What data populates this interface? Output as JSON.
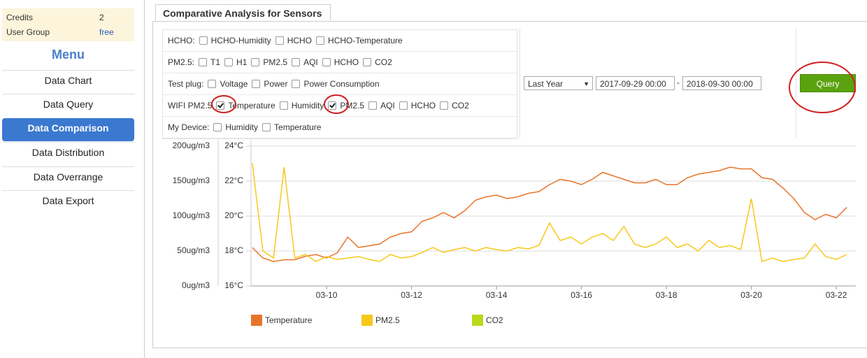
{
  "sidebar": {
    "credits_label": "Credits",
    "credits_value": 2,
    "group_label": "User Group",
    "group_value": "free",
    "menu_title": "Menu",
    "menu": [
      {
        "text": "Data Chart",
        "active": false
      },
      {
        "text": "Data Query",
        "active": false
      },
      {
        "text": "Data Comparison",
        "active": true
      },
      {
        "text": "Data Distribution",
        "active": false
      },
      {
        "text": "Data Overrange",
        "active": false
      },
      {
        "text": "Data Export",
        "active": false
      }
    ]
  },
  "tab": "Comparative Analysis for Sensors",
  "filters": [
    {
      "label": "HCHO:",
      "options": [
        {
          "text": "HCHO-Humidity",
          "checked": false
        },
        {
          "text": "HCHO",
          "checked": false
        },
        {
          "text": "HCHO-Temperature",
          "checked": false
        }
      ]
    },
    {
      "label": "PM2.5:",
      "options": [
        {
          "text": "T1",
          "checked": false
        },
        {
          "text": "H1",
          "checked": false
        },
        {
          "text": "PM2.5",
          "checked": false
        },
        {
          "text": "AQI",
          "checked": false
        },
        {
          "text": "HCHO",
          "checked": false
        },
        {
          "text": "CO2",
          "checked": false
        }
      ]
    },
    {
      "label": "Test plug:",
      "options": [
        {
          "text": "Voltage",
          "checked": false
        },
        {
          "text": "Power",
          "checked": false
        },
        {
          "text": "Power Consumption",
          "checked": false
        }
      ]
    },
    {
      "label": "WIFI PM2.5",
      "options": [
        {
          "text": "Temperature",
          "checked": true
        },
        {
          "text": "Humidity",
          "checked": false
        },
        {
          "text": "PM2.5",
          "checked": true
        },
        {
          "text": "AQI",
          "checked": false
        },
        {
          "text": "HCHO",
          "checked": false
        },
        {
          "text": "CO2",
          "checked": false
        }
      ]
    },
    {
      "label": "My Device:",
      "options": [
        {
          "text": "Humidity",
          "checked": false
        },
        {
          "text": "Temperature",
          "checked": false
        }
      ]
    }
  ],
  "query": {
    "range": "Last Year",
    "start": "2017-09-29 00:00",
    "separator": "-",
    "end": "2018-09-30 00:00",
    "button": "Query"
  },
  "chart_data": {
    "type": "line",
    "grid": true,
    "x": [
      8.25,
      8.5,
      8.75,
      9,
      9.25,
      9.5,
      9.75,
      10,
      10.25,
      10.5,
      10.75,
      11,
      11.25,
      11.5,
      11.75,
      12,
      12.25,
      12.5,
      12.75,
      13,
      13.25,
      13.5,
      13.75,
      14,
      14.25,
      14.5,
      14.75,
      15,
      15.25,
      15.5,
      15.75,
      16,
      16.25,
      16.5,
      16.75,
      17,
      17.25,
      17.5,
      17.75,
      18,
      18.25,
      18.5,
      18.75,
      19,
      19.25,
      19.5,
      19.75,
      20,
      20.25,
      20.5,
      20.75,
      21,
      21.25,
      21.5,
      21.75,
      22,
      22.25
    ],
    "xlim": [
      8.22,
      22.46
    ],
    "xticks": [
      {
        "value": 10,
        "label": "03-10"
      },
      {
        "value": 12,
        "label": "03-12"
      },
      {
        "value": 14,
        "label": "03-14"
      },
      {
        "value": 16,
        "label": "03-16"
      },
      {
        "value": 18,
        "label": "03-18"
      },
      {
        "value": 20,
        "label": "03-20"
      },
      {
        "value": 22,
        "label": "03-22"
      }
    ],
    "ylim": [
      0,
      200
    ],
    "yticks": [
      {
        "value": 0,
        "label": "0ug/m3"
      },
      {
        "value": 50,
        "label": "50ug/m3"
      },
      {
        "value": 100,
        "label": "100ug/m3"
      },
      {
        "value": 150,
        "label": "150ug/m3"
      },
      {
        "value": 200,
        "label": "200ug/m3"
      }
    ],
    "y2lim": [
      16,
      24
    ],
    "y2ticks": [
      {
        "value": 16,
        "label": "16°C"
      },
      {
        "value": 18,
        "label": "18°C"
      },
      {
        "value": 20,
        "label": "20°C"
      },
      {
        "value": 22,
        "label": "22°C"
      },
      {
        "value": 24,
        "label": "24°C"
      }
    ],
    "series": [
      {
        "name": "Temperature",
        "color": "#e8742a",
        "axis": "y2",
        "values": [
          18.2,
          17.6,
          17.4,
          17.5,
          17.5,
          17.7,
          17.8,
          17.6,
          17.9,
          18.8,
          18.2,
          18.3,
          18.4,
          18.8,
          19.0,
          19.1,
          19.7,
          19.9,
          20.2,
          19.9,
          20.3,
          20.9,
          21.1,
          21.2,
          21.0,
          21.1,
          21.3,
          21.4,
          21.8,
          22.1,
          22.0,
          21.8,
          22.1,
          22.5,
          22.3,
          22.1,
          21.9,
          21.9,
          22.1,
          21.8,
          21.8,
          22.2,
          22.4,
          22.5,
          22.6,
          22.8,
          22.7,
          22.7,
          22.2,
          22.1,
          21.6,
          21.0,
          20.2,
          19.8,
          20.1,
          19.9,
          20.5
        ]
      },
      {
        "name": "PM2.5",
        "color": "#f7c81c",
        "values": [
          176,
          50,
          40,
          170,
          40,
          45,
          35,
          42,
          38,
          40,
          42,
          38,
          35,
          45,
          40,
          42,
          48,
          55,
          48,
          52,
          55,
          50,
          55,
          52,
          50,
          55,
          53,
          58,
          90,
          65,
          70,
          60,
          70,
          75,
          65,
          85,
          60,
          55,
          60,
          70,
          55,
          60,
          50,
          65,
          55,
          58,
          52,
          125,
          35,
          40,
          35,
          38,
          40,
          60,
          42,
          38,
          45
        ]
      },
      {
        "name": "CO2",
        "color": "#b8d91c",
        "values": [
          null,
          null,
          null,
          null,
          null,
          null,
          null,
          null,
          null,
          null,
          null,
          null,
          null,
          null,
          null,
          null,
          null,
          null,
          null,
          null,
          null,
          null,
          null,
          null,
          null,
          null,
          null,
          null,
          null,
          null,
          null,
          null,
          null,
          null,
          null,
          null,
          null,
          null,
          null,
          null,
          null,
          null,
          null,
          null,
          null,
          null,
          null,
          null,
          null,
          null,
          null,
          null,
          null,
          null,
          null,
          null,
          null
        ]
      }
    ]
  }
}
